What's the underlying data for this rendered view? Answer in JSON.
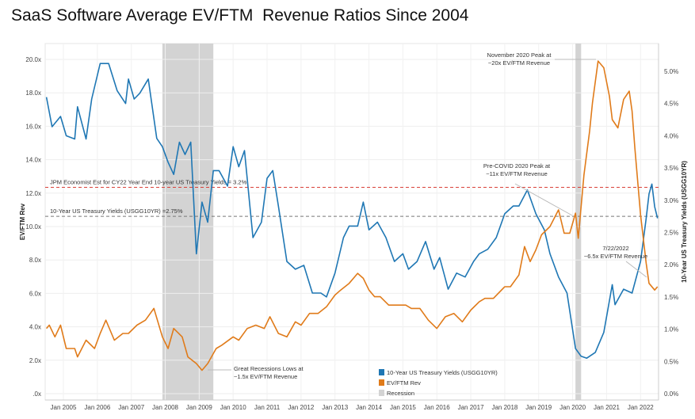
{
  "chart_data": {
    "type": "line",
    "title": "SaaS Software Average EV/FTM  Revenue Ratios Since 2004",
    "ylabel_left": "EV/FTM Rev",
    "ylabel_right": "10-Year US Treasury Yields (USGG10YR)",
    "ylim_left": [
      0,
      21
    ],
    "ylim_right": [
      0,
      5.4
    ],
    "left_ticks": [
      ".0x",
      "2.0x",
      "4.0x",
      "6.0x",
      "8.0x",
      "10.0x",
      "12.0x",
      "14.0x",
      "16.0x",
      "18.0x",
      "20.0x"
    ],
    "right_ticks": [
      "0.0%",
      "0.5%",
      "1.0%",
      "1.5%",
      "2.0%",
      "2.5%",
      "3.0%",
      "3.5%",
      "4.0%",
      "4.5%",
      "5.0%"
    ],
    "x_ticks": [
      "Jan 2005",
      "Jan 2006",
      "Jan 2007",
      "Jan 2008",
      "Jan 2009",
      "Jan 2010",
      "Jan 2011",
      "Jan 2012",
      "Jan 2013",
      "Jan 2014",
      "Jan 2015",
      "Jan 2016",
      "Jan 2017",
      "Jan 2018",
      "Jan 2019",
      "Jan 2020",
      "Jan 2021",
      "Jan 2022"
    ],
    "grid": true,
    "legend_placement": "bottom-center",
    "legend": [
      {
        "label": "10-Year US Treasury Yields (USGG10YR)",
        "color": "#1f77b4"
      },
      {
        "label": "EV/FTM Rev",
        "color": "#e07b1a"
      },
      {
        "label": "Recession",
        "color": "#d3d3d3"
      }
    ],
    "recessions": [
      [
        "2007-12",
        "2009-06"
      ],
      [
        "2020-02",
        "2020-04"
      ]
    ],
    "reference_lines": [
      {
        "label": "JPM Economist Est for CY22 Year End 10-year US Treasury Yields = 3.2%",
        "value": 3.2,
        "axis": "right",
        "color": "#d9413a"
      },
      {
        "label": "10-Year US Treasury Yields (USGG10YR) =2.75%",
        "value": 2.75,
        "axis": "right",
        "color": "#777777"
      }
    ],
    "annotations": [
      {
        "lines": [
          "November 2020 Peak at",
          "~20x EV/FTM Revenue"
        ],
        "date": "2020-10"
      },
      {
        "lines": [
          "Pre-COVID 2020 Peak at",
          "~11x EV/FTM Revenue"
        ],
        "date": "2020-01"
      },
      {
        "lines": [
          "7/22/2022",
          "~6.5x EV/FTM Revenue"
        ],
        "date": "2022-07"
      },
      {
        "lines": [
          "Great Recessions Lows at",
          "~1.5x EV/FTM Revenue"
        ],
        "date": "2009-02"
      }
    ],
    "series": [
      {
        "name": "10-Year US Treasury Yields (USGG10YR)",
        "axis": "right",
        "color": "#1f77b4",
        "points": [
          [
            "2004-07",
            4.6
          ],
          [
            "2004-09",
            4.14
          ],
          [
            "2004-12",
            4.3
          ],
          [
            "2005-02",
            4.0
          ],
          [
            "2005-05",
            3.95
          ],
          [
            "2005-06",
            4.45
          ],
          [
            "2005-09",
            3.95
          ],
          [
            "2005-11",
            4.57
          ],
          [
            "2006-02",
            5.12
          ],
          [
            "2006-05",
            5.12
          ],
          [
            "2006-08",
            4.7
          ],
          [
            "2006-11",
            4.5
          ],
          [
            "2006-12",
            4.88
          ],
          [
            "2007-02",
            4.57
          ],
          [
            "2007-04",
            4.66
          ],
          [
            "2007-07",
            4.88
          ],
          [
            "2007-10",
            3.96
          ],
          [
            "2007-12",
            3.83
          ],
          [
            "2008-02",
            3.59
          ],
          [
            "2008-04",
            3.4
          ],
          [
            "2008-06",
            3.9
          ],
          [
            "2008-08",
            3.71
          ],
          [
            "2008-10",
            3.9
          ],
          [
            "2008-12",
            2.17
          ],
          [
            "2009-02",
            2.97
          ],
          [
            "2009-04",
            2.66
          ],
          [
            "2009-06",
            3.46
          ],
          [
            "2009-08",
            3.46
          ],
          [
            "2009-11",
            3.22
          ],
          [
            "2010-01",
            3.83
          ],
          [
            "2010-03",
            3.52
          ],
          [
            "2010-05",
            3.77
          ],
          [
            "2010-08",
            2.42
          ],
          [
            "2010-11",
            2.66
          ],
          [
            "2011-01",
            3.34
          ],
          [
            "2011-03",
            3.46
          ],
          [
            "2011-05",
            2.91
          ],
          [
            "2011-08",
            2.05
          ],
          [
            "2011-11",
            1.93
          ],
          [
            "2012-02",
            1.99
          ],
          [
            "2012-05",
            1.56
          ],
          [
            "2012-08",
            1.56
          ],
          [
            "2012-10",
            1.5
          ],
          [
            "2013-01",
            1.87
          ],
          [
            "2013-04",
            2.42
          ],
          [
            "2013-06",
            2.6
          ],
          [
            "2013-09",
            2.6
          ],
          [
            "2013-11",
            2.97
          ],
          [
            "2014-01",
            2.54
          ],
          [
            "2014-04",
            2.66
          ],
          [
            "2014-07",
            2.42
          ],
          [
            "2014-10",
            2.05
          ],
          [
            "2015-01",
            2.17
          ],
          [
            "2015-03",
            1.93
          ],
          [
            "2015-06",
            2.05
          ],
          [
            "2015-09",
            2.36
          ],
          [
            "2015-12",
            1.93
          ],
          [
            "2016-02",
            2.11
          ],
          [
            "2016-05",
            1.62
          ],
          [
            "2016-08",
            1.87
          ],
          [
            "2016-11",
            1.81
          ],
          [
            "2017-02",
            2.05
          ],
          [
            "2017-04",
            2.17
          ],
          [
            "2017-07",
            2.24
          ],
          [
            "2017-10",
            2.42
          ],
          [
            "2018-01",
            2.79
          ],
          [
            "2018-04",
            2.91
          ],
          [
            "2018-06",
            2.91
          ],
          [
            "2018-09",
            3.16
          ],
          [
            "2018-12",
            2.79
          ],
          [
            "2019-03",
            2.54
          ],
          [
            "2019-05",
            2.17
          ],
          [
            "2019-08",
            1.81
          ],
          [
            "2019-11",
            1.56
          ],
          [
            "2020-02",
            0.7
          ],
          [
            "2020-04",
            0.58
          ],
          [
            "2020-06",
            0.55
          ],
          [
            "2020-09",
            0.64
          ],
          [
            "2020-12",
            0.95
          ],
          [
            "2021-03",
            1.69
          ],
          [
            "2021-04",
            1.38
          ],
          [
            "2021-07",
            1.62
          ],
          [
            "2021-10",
            1.56
          ],
          [
            "2022-01",
            2.05
          ],
          [
            "2022-03",
            2.72
          ],
          [
            "2022-04",
            3.1
          ],
          [
            "2022-05",
            3.25
          ],
          [
            "2022-06",
            2.9
          ],
          [
            "2022-07",
            2.72
          ]
        ]
      },
      {
        "name": "EV/FTM Rev",
        "axis": "left",
        "color": "#e07b1a",
        "points": [
          [
            "2004-07",
            3.9
          ],
          [
            "2004-08",
            4.1
          ],
          [
            "2004-10",
            3.4
          ],
          [
            "2004-12",
            4.1
          ],
          [
            "2005-02",
            2.7
          ],
          [
            "2005-05",
            2.7
          ],
          [
            "2005-06",
            2.2
          ],
          [
            "2005-09",
            3.2
          ],
          [
            "2005-12",
            2.7
          ],
          [
            "2006-02",
            3.6
          ],
          [
            "2006-04",
            4.4
          ],
          [
            "2006-07",
            3.2
          ],
          [
            "2006-10",
            3.6
          ],
          [
            "2006-12",
            3.6
          ],
          [
            "2007-03",
            4.1
          ],
          [
            "2007-06",
            4.4
          ],
          [
            "2007-09",
            5.1
          ],
          [
            "2007-12",
            3.4
          ],
          [
            "2008-02",
            2.7
          ],
          [
            "2008-04",
            3.9
          ],
          [
            "2008-07",
            3.4
          ],
          [
            "2008-09",
            2.2
          ],
          [
            "2008-12",
            1.8
          ],
          [
            "2009-02",
            1.4
          ],
          [
            "2009-04",
            1.8
          ],
          [
            "2009-07",
            2.7
          ],
          [
            "2009-09",
            2.9
          ],
          [
            "2010-01",
            3.4
          ],
          [
            "2010-03",
            3.2
          ],
          [
            "2010-06",
            3.9
          ],
          [
            "2010-09",
            4.1
          ],
          [
            "2010-12",
            3.9
          ],
          [
            "2011-02",
            4.6
          ],
          [
            "2011-05",
            3.6
          ],
          [
            "2011-08",
            3.4
          ],
          [
            "2011-11",
            4.3
          ],
          [
            "2012-01",
            4.1
          ],
          [
            "2012-04",
            4.8
          ],
          [
            "2012-07",
            4.8
          ],
          [
            "2012-10",
            5.2
          ],
          [
            "2013-01",
            5.9
          ],
          [
            "2013-03",
            6.2
          ],
          [
            "2013-06",
            6.6
          ],
          [
            "2013-09",
            7.2
          ],
          [
            "2013-11",
            6.9
          ],
          [
            "2014-01",
            6.2
          ],
          [
            "2014-03",
            5.8
          ],
          [
            "2014-05",
            5.8
          ],
          [
            "2014-08",
            5.3
          ],
          [
            "2014-11",
            5.3
          ],
          [
            "2015-02",
            5.3
          ],
          [
            "2015-04",
            5.1
          ],
          [
            "2015-07",
            5.1
          ],
          [
            "2015-10",
            4.4
          ],
          [
            "2016-01",
            3.9
          ],
          [
            "2016-04",
            4.6
          ],
          [
            "2016-07",
            4.8
          ],
          [
            "2016-10",
            4.3
          ],
          [
            "2017-01",
            5.0
          ],
          [
            "2017-04",
            5.5
          ],
          [
            "2017-06",
            5.7
          ],
          [
            "2017-09",
            5.7
          ],
          [
            "2018-01",
            6.4
          ],
          [
            "2018-03",
            6.4
          ],
          [
            "2018-06",
            7.1
          ],
          [
            "2018-08",
            8.8
          ],
          [
            "2018-10",
            7.9
          ],
          [
            "2018-12",
            8.6
          ],
          [
            "2019-02",
            9.5
          ],
          [
            "2019-05",
            10.0
          ],
          [
            "2019-08",
            11.0
          ],
          [
            "2019-10",
            9.6
          ],
          [
            "2019-12",
            9.6
          ],
          [
            "2020-02",
            10.8
          ],
          [
            "2020-03",
            9.3
          ],
          [
            "2020-05",
            13.1
          ],
          [
            "2020-07",
            15.7
          ],
          [
            "2020-08",
            17.4
          ],
          [
            "2020-10",
            19.9
          ],
          [
            "2020-12",
            19.5
          ],
          [
            "2021-02",
            17.8
          ],
          [
            "2021-03",
            16.4
          ],
          [
            "2021-05",
            15.9
          ],
          [
            "2021-07",
            17.6
          ],
          [
            "2021-09",
            18.1
          ],
          [
            "2021-10",
            16.9
          ],
          [
            "2021-11",
            14.7
          ],
          [
            "2022-01",
            10.7
          ],
          [
            "2022-03",
            7.8
          ],
          [
            "2022-04",
            6.6
          ],
          [
            "2022-06",
            6.2
          ],
          [
            "2022-07",
            6.4
          ]
        ]
      }
    ]
  }
}
